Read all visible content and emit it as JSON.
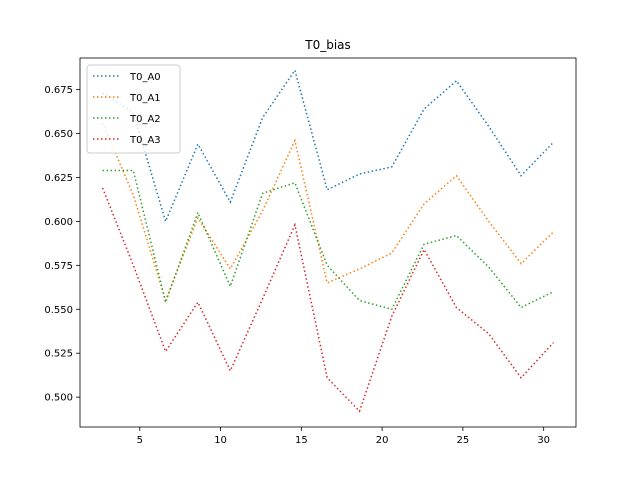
{
  "chart_data": {
    "type": "line",
    "title": "T0_bias",
    "xlabel": "",
    "ylabel": "",
    "xlim": [
      1.3,
      32.0
    ],
    "ylim": [
      0.483,
      0.693
    ],
    "xticks": [
      5,
      10,
      15,
      20,
      25,
      30
    ],
    "yticks": [
      0.5,
      0.525,
      0.55,
      0.575,
      0.6,
      0.625,
      0.65,
      0.675
    ],
    "xtick_labels": [
      "5",
      "10",
      "15",
      "20",
      "25",
      "30"
    ],
    "ytick_labels": [
      "0.500",
      "0.525",
      "0.550",
      "0.575",
      "0.600",
      "0.625",
      "0.650",
      "0.675"
    ],
    "grid": false,
    "legend_position": "upper-left",
    "line_style": "dotted",
    "x": [
      2.7,
      4.6,
      6.6,
      8.6,
      10.6,
      12.6,
      14.6,
      16.6,
      18.6,
      20.6,
      22.6,
      24.6,
      26.6,
      28.6,
      30.6
    ],
    "series": [
      {
        "name": "T0_A0",
        "color": "#1f77b4",
        "values": [
          0.673,
          0.662,
          0.6,
          0.644,
          0.611,
          0.659,
          0.686,
          0.618,
          0.627,
          0.631,
          0.664,
          0.68,
          0.654,
          0.626,
          0.645
        ]
      },
      {
        "name": "T0_A1",
        "color": "#ff7f0e",
        "values": [
          0.656,
          0.615,
          0.555,
          0.602,
          0.573,
          0.606,
          0.646,
          0.565,
          0.573,
          0.582,
          0.61,
          0.626,
          0.6,
          0.576,
          0.594
        ]
      },
      {
        "name": "T0_A2",
        "color": "#2ca02c",
        "values": [
          0.629,
          0.629,
          0.554,
          0.605,
          0.563,
          0.616,
          0.622,
          0.575,
          0.555,
          0.55,
          0.587,
          0.592,
          0.574,
          0.551,
          0.56
        ]
      },
      {
        "name": "T0_A3",
        "color": "#d62728",
        "values": [
          0.619,
          0.575,
          0.526,
          0.554,
          0.515,
          0.556,
          0.598,
          0.511,
          0.492,
          0.546,
          0.584,
          0.551,
          0.536,
          0.511,
          0.531
        ]
      }
    ]
  }
}
